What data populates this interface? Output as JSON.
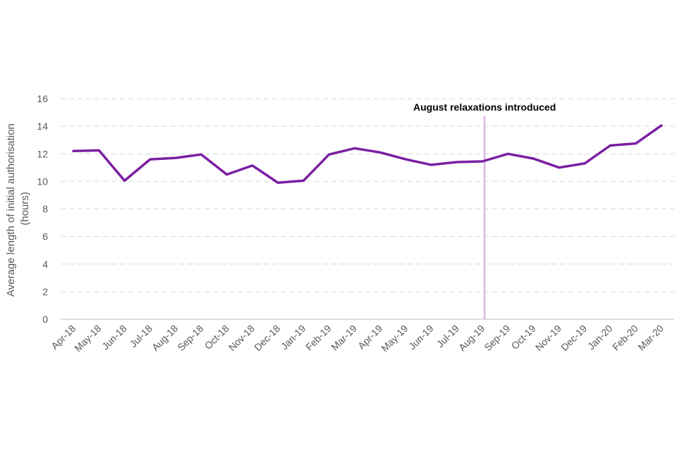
{
  "chart_data": {
    "type": "line",
    "title": "",
    "xlabel": "",
    "ylabel": "Average length of initial authorisation (hours)",
    "ylabel_lines": [
      "Average length of initial authorisation",
      "(hours)"
    ],
    "ylim": [
      0,
      16
    ],
    "yticks": [
      0,
      2,
      4,
      6,
      8,
      10,
      12,
      14,
      16
    ],
    "grid": true,
    "legend": "none",
    "categories": [
      "Apr-18",
      "May-18",
      "Jun-18",
      "Jul-18",
      "Aug-18",
      "Sep-18",
      "Oct-18",
      "Nov-18",
      "Dec-18",
      "Jan-19",
      "Feb-19",
      "Mar-19",
      "Apr-19",
      "May-19",
      "Jun-19",
      "Jul-19",
      "Aug-19",
      "Sep-19",
      "Oct-19",
      "Nov-19",
      "Dec-19",
      "Jan-20",
      "Feb-20",
      "Mar-20"
    ],
    "series": [
      {
        "values": [
          12.2,
          12.25,
          10.05,
          11.6,
          11.7,
          11.95,
          10.5,
          11.15,
          9.9,
          10.05,
          11.95,
          12.4,
          12.1,
          11.6,
          11.2,
          11.4,
          11.45,
          12.0,
          11.65,
          11.0,
          11.3,
          12.6,
          12.75,
          14.05
        ],
        "color": "#7b1fa2"
      }
    ],
    "annotations": [
      {
        "type": "vertical-line",
        "x": "Aug-19",
        "label": "August relaxations introduced",
        "color": "#e1bee7"
      }
    ]
  }
}
